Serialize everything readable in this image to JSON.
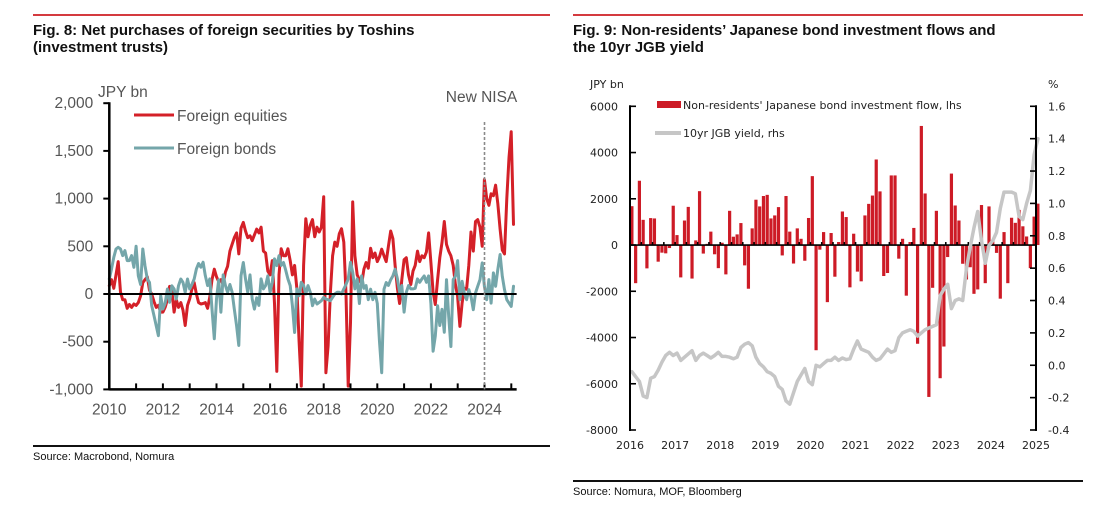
{
  "theme": {
    "rule_color": "#d43a3f",
    "axis_color": "#000000"
  },
  "figures": {
    "fig8": {
      "title_line1": "Fig. 8: Net purchases of foreign securities by Toshins",
      "title_line2": "(investment trusts)",
      "source": "Source: Macrobond, Nomura"
    },
    "fig9": {
      "title_line1": "Fig. 9: Non-residents’ Japanese bond investment flows and",
      "title_line2": "the 10yr JGB yield",
      "source": "Source: Nomura, MOF, Bloomberg"
    }
  },
  "chart_data": [
    {
      "type": "line",
      "title": "Fig. 8: Net purchases of foreign securities by Toshins (investment trusts)",
      "xlabel": "",
      "ylabel": "JPY bn",
      "ylim": [
        -1000,
        2000
      ],
      "yticks": [
        2000,
        1500,
        1000,
        500,
        0,
        -500,
        -1000
      ],
      "ytick_labels": [
        "2,000",
        "1,500",
        "1,000",
        "500",
        "0",
        "-500",
        "-1,000"
      ],
      "xlim": [
        2010,
        2025.2
      ],
      "xticks": [
        2010,
        2012,
        2014,
        2016,
        2018,
        2020,
        2022,
        2024
      ],
      "xtick_labels": [
        "2010",
        "2012",
        "2014",
        "2016",
        "2018",
        "2020",
        "2022",
        "2024"
      ],
      "x_start": "2010-01",
      "x_frequency": "monthly",
      "grid": false,
      "legend": "top-left",
      "annotations": [
        {
          "type": "vertical-dashed-line",
          "x": 2024,
          "text": "New NISA"
        }
      ],
      "series": [
        {
          "name": "Foreign equities",
          "color": "#d42028",
          "values": [
            87,
            150,
            60,
            200,
            340,
            20,
            -60,
            -60,
            -150,
            -110,
            -140,
            -105,
            -120,
            -90,
            -20,
            120,
            150,
            180,
            40,
            0,
            -80,
            -140,
            -120,
            -190,
            -190,
            -140,
            -60,
            80,
            40,
            -190,
            -60,
            -140,
            -90,
            -170,
            -330,
            -120,
            -50,
            50,
            120,
            0,
            -90,
            -105,
            -100,
            -90,
            -150,
            -30,
            150,
            260,
            180,
            130,
            150,
            100,
            230,
            290,
            450,
            520,
            590,
            640,
            420,
            690,
            750,
            660,
            590,
            610,
            560,
            620,
            680,
            640,
            700,
            450,
            430,
            240,
            200,
            350,
            -100,
            -810,
            200,
            474,
            400,
            400,
            474,
            350,
            200,
            300,
            53,
            -500,
            -965,
            300,
            789,
            600,
            720,
            780,
            600,
            700,
            650,
            700,
            1020,
            -825,
            -544,
            18,
            400,
            544,
            500,
            632,
            684,
            544,
            0,
            -965,
            -300,
            965,
            400,
            200,
            150,
            100,
            260,
            330,
            270,
            480,
            380,
            430,
            340,
            390,
            470,
            400,
            340,
            500,
            660,
            580,
            300,
            60,
            -100,
            150,
            360,
            380,
            200,
            100,
            240,
            300,
            450,
            340,
            400,
            380,
            440,
            640,
            330,
            20,
            -110,
            150,
            380,
            540,
            760,
            520,
            450,
            400,
            300,
            100,
            -25,
            -340,
            -95,
            60,
            50,
            300,
            650,
            450,
            760,
            780,
            700,
            500,
            1200,
            1000,
            930,
            1050,
            1030,
            1140,
            950,
            680,
            460,
            420,
            1000,
            1430,
            1700,
            730
          ]
        },
        {
          "name": "Foreign bonds",
          "color": "#74a6aa",
          "values": [
            157,
            262,
            385,
            472,
            490,
            472,
            402,
            455,
            350,
            350,
            402,
            280,
            500,
            192,
            100,
            472,
            297,
            157,
            122,
            -122,
            -227,
            -332,
            -437,
            -17,
            -157,
            -100,
            52,
            -87,
            87,
            52,
            -52,
            87,
            157,
            122,
            17,
            157,
            52,
            100,
            158,
            263,
            320,
            281,
            333,
            193,
            88,
            158,
            -158,
            -470,
            -50,
            150,
            -190,
            200,
            90,
            18,
            100,
            20,
            -158,
            -333,
            -540,
            190,
            330,
            158,
            18,
            200,
            -53,
            -158,
            -40,
            -120,
            158,
            53,
            88,
            190,
            18,
            123,
            368,
            298,
            400,
            300,
            330,
            250,
            158,
            88,
            -123,
            -404,
            53,
            -18,
            123,
            88,
            0,
            88,
            18,
            -123,
            -53,
            -105,
            -88,
            -70,
            -35,
            -53,
            -60,
            -70,
            -35,
            0,
            18,
            18,
            0,
            53,
            100,
            158,
            333,
            228,
            53,
            158,
            -100,
            190,
            60,
            88,
            -60,
            50,
            -60,
            18,
            -100,
            -500,
            -825,
            50,
            120,
            90,
            150,
            190,
            260,
            160,
            20,
            88,
            -190,
            18,
            88,
            53,
            53,
            60,
            158,
            123,
            158,
            190,
            123,
            190,
            -100,
            -600,
            -440,
            -123,
            -330,
            -160,
            -400,
            150,
            -235,
            -550,
            151,
            186,
            350,
            -60,
            133,
            11,
            -60,
            46,
            -25,
            -165,
            11,
            81,
            151,
            326,
            81,
            -60,
            151,
            -95,
            221,
            81,
            256,
            414,
            186,
            46,
            -60,
            -95,
            -130,
            81
          ]
        }
      ]
    },
    {
      "type": "bar+line",
      "title": "Fig. 9: Non-residents’ Japanese bond investment flows and the 10yr JGB yield",
      "xlabel": "",
      "ylabel": "JPY bn",
      "y2label": "%",
      "ylim": [
        -8000,
        6000
      ],
      "yticks": [
        6000,
        4000,
        2000,
        0,
        -2000,
        -4000,
        -6000,
        -8000
      ],
      "ytick_labels": [
        "6000",
        "4000",
        "2000",
        "0",
        "-2000",
        "-4000",
        "-6000",
        "-8000"
      ],
      "y2lim": [
        -0.4,
        1.6
      ],
      "y2ticks": [
        1.6,
        1.4,
        1.2,
        1.0,
        0.8,
        0.6,
        0.4,
        0.2,
        0.0,
        -0.2,
        -0.4
      ],
      "y2tick_labels": [
        "1.6",
        "1.4",
        "1.2",
        "1.0",
        "0.8",
        "0.6",
        "0.4",
        "0.2",
        "0.0",
        "-0.2",
        "-0.4"
      ],
      "xlim": [
        2016,
        2025
      ],
      "xticks": [
        2016,
        2017,
        2018,
        2019,
        2020,
        2021,
        2022,
        2023,
        2024,
        2025
      ],
      "xtick_labels": [
        "2016",
        "2017",
        "2018",
        "2019",
        "2020",
        "2021",
        "2022",
        "2023",
        "2024",
        "2025"
      ],
      "x_start": "2016-01",
      "x_frequency": "monthly",
      "grid": false,
      "legend": "top-left",
      "series": [
        {
          "name": "Non-residents' Japanese bond investment flow, lhs",
          "type": "bar",
          "axis": "lhs",
          "color": "#cd1b26",
          "values": [
            1680,
            -1650,
            2780,
            1090,
            -1010,
            1165,
            1150,
            -720,
            -330,
            -360,
            -130,
            1700,
            430,
            -1400,
            1060,
            1650,
            -1450,
            200,
            2330,
            -370,
            50,
            580,
            -400,
            -1000,
            100,
            -1270,
            1480,
            360,
            460,
            950,
            -880,
            -1890,
            720,
            1960,
            1670,
            2120,
            2170,
            1150,
            1280,
            1640,
            -450,
            2120,
            580,
            -800,
            720,
            270,
            -680,
            1170,
            2980,
            -4550,
            -200,
            560,
            -2470,
            520,
            -1370,
            130,
            1450,
            1210,
            -1830,
            490,
            -1150,
            -1570,
            1280,
            1780,
            2140,
            3700,
            2320,
            -1340,
            -1210,
            3010,
            3010,
            -590,
            270,
            -2190,
            130,
            740,
            -4270,
            5150,
            2230,
            -6570,
            -1850,
            1480,
            -5760,
            -4390,
            -520,
            3090,
            1710,
            1060,
            -810,
            -1490,
            -960,
            -2110,
            -1920,
            1730,
            -1650,
            1670,
            220,
            -340,
            -2320,
            560,
            -1650,
            1180,
            960,
            1520,
            810,
            370,
            -1000,
            1230,
            1790
          ]
        },
        {
          "name": "10yr JGB yield, rhs",
          "type": "line",
          "axis": "rhs",
          "color": "#c6c6c6",
          "values": [
            -0.04,
            -0.07,
            -0.1,
            -0.19,
            -0.2,
            -0.08,
            -0.07,
            -0.03,
            0.02,
            0.06,
            0.08,
            0.06,
            0.075,
            0.03,
            0.05,
            0.07,
            0.09,
            0.03,
            0.06,
            0.075,
            0.06,
            0.045,
            0.06,
            0.08,
            0.055,
            0.055,
            0.05,
            0.04,
            0.05,
            0.11,
            0.13,
            0.14,
            0.12,
            0.05,
            0.01,
            -0.01,
            -0.04,
            -0.05,
            -0.07,
            -0.13,
            -0.15,
            -0.22,
            -0.24,
            -0.17,
            -0.1,
            -0.06,
            -0.02,
            -0.1,
            -0.12,
            0.0,
            -0.01,
            0.01,
            0.03,
            0.03,
            0.05,
            0.03,
            0.045,
            0.035,
            0.04,
            0.1,
            0.15,
            0.1,
            0.09,
            0.08,
            0.05,
            0.03,
            0.04,
            0.07,
            0.1,
            0.08,
            0.09,
            0.17,
            0.2,
            0.21,
            0.22,
            0.21,
            0.18,
            0.2,
            0.22,
            0.23,
            0.24,
            0.25,
            0.43,
            0.47,
            0.5,
            0.35,
            0.4,
            0.41,
            0.4,
            0.6,
            0.73,
            0.85,
            0.95,
            0.77,
            0.63,
            0.74,
            0.77,
            0.82,
            0.97,
            1.07,
            1.07,
            1.07,
            1.06,
            0.92,
            0.9,
            1.0,
            1.08,
            1.3,
            1.4
          ]
        }
      ]
    }
  ]
}
